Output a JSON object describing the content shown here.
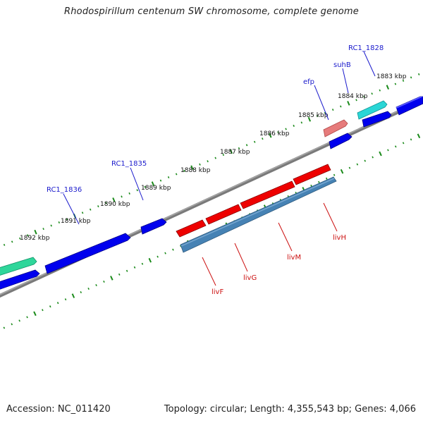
{
  "header": {
    "title": "Rhodospirillum centenum SW chromosome, complete genome"
  },
  "footer": {
    "accession": "Accession: NC_011420",
    "summary": "Topology: circular; Length: 4,355,543 bp; Genes: 4,066"
  },
  "colors": {
    "forward_gene": "#0000ee",
    "reverse_gene": "#1f1fd9",
    "operon_gene": "#ee0000",
    "operon_bar": "#4682b4",
    "suhB": "#2ad6d6",
    "efp": "#e67b7b",
    "left_teal": "#2fd69a",
    "backbone": "#808080",
    "tick": "#1a8a1a",
    "blue_label": "#1a1acc",
    "red_label": "#cc1111"
  },
  "scale": {
    "ticks": [
      {
        "label": "1883 kbp"
      },
      {
        "label": "1884 kbp"
      },
      {
        "label": "1885 kbp"
      },
      {
        "label": "1886 kbp"
      },
      {
        "label": "1887 kbp"
      },
      {
        "label": "1888 kbp"
      },
      {
        "label": "1889 kbp"
      },
      {
        "label": "1890 kbp"
      },
      {
        "label": "1891 kbp"
      },
      {
        "label": "1892 kbp"
      }
    ]
  },
  "genes": {
    "upper": [
      {
        "name": "RC1_1828"
      },
      {
        "name": "suhB"
      },
      {
        "name": "efp"
      },
      {
        "name": "RC1_1835"
      },
      {
        "name": "RC1_1836"
      }
    ],
    "lower": [
      {
        "name": "livF"
      },
      {
        "name": "livG"
      },
      {
        "name": "livM"
      },
      {
        "name": "livH"
      }
    ]
  }
}
